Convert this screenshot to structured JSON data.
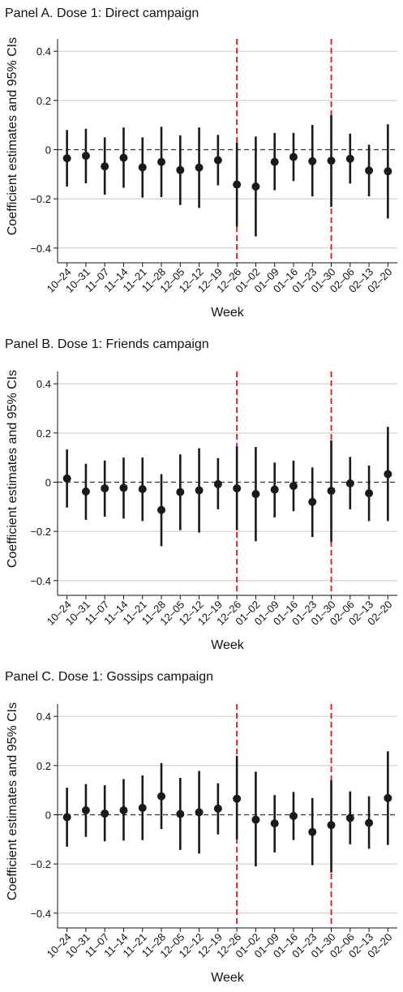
{
  "chart_data": [
    {
      "type": "scatter",
      "title": "Panel A. Dose 1: Direct campaign",
      "xlabel": "Week",
      "ylabel": "Coefficient estimates and 95% CIs",
      "ylim": [
        -0.46,
        0.45
      ],
      "yticks": [
        "0.4",
        "0.2",
        "0",
        "−0.2",
        "−0.4"
      ],
      "ytick_values": [
        0.4,
        0.2,
        0,
        -0.2,
        -0.4
      ],
      "categories": [
        "10–24",
        "10–31",
        "11–07",
        "11–14",
        "11–21",
        "11–28",
        "12–05",
        "12–12",
        "12–19",
        "12–26",
        "01–02",
        "01–09",
        "01–16",
        "01–23",
        "01–30",
        "02–06",
        "02–13",
        "02–20"
      ],
      "estimate": [
        -0.035,
        -0.025,
        -0.068,
        -0.033,
        -0.072,
        -0.05,
        -0.083,
        -0.073,
        -0.043,
        -0.142,
        -0.15,
        -0.05,
        -0.03,
        -0.047,
        -0.045,
        -0.037,
        -0.085,
        -0.088
      ],
      "ci_low": [
        -0.15,
        -0.137,
        -0.183,
        -0.155,
        -0.195,
        -0.193,
        -0.225,
        -0.237,
        -0.145,
        -0.312,
        -0.353,
        -0.165,
        -0.128,
        -0.19,
        -0.233,
        -0.138,
        -0.19,
        -0.28
      ],
      "ci_high": [
        0.08,
        0.085,
        0.05,
        0.09,
        0.05,
        0.093,
        0.058,
        0.09,
        0.06,
        0.028,
        0.053,
        0.068,
        0.068,
        0.1,
        0.14,
        0.065,
        0.02,
        0.103
      ],
      "reference_lines": [
        "12–26",
        "01–30"
      ],
      "grid": true
    },
    {
      "type": "scatter",
      "title": "Panel B. Dose 1: Friends campaign",
      "xlabel": "Week",
      "ylabel": "Coefficient estimates and 95% CIs",
      "ylim": [
        -0.46,
        0.45
      ],
      "yticks": [
        "0.4",
        "0.2",
        "0",
        "−0.2",
        "−0.4"
      ],
      "ytick_values": [
        0.4,
        0.2,
        0,
        -0.2,
        -0.4
      ],
      "categories": [
        "10–24",
        "10–31",
        "11–07",
        "11–14",
        "11–21",
        "11–28",
        "12–05",
        "12–12",
        "12–19",
        "12–26",
        "01–02",
        "01–09",
        "01–16",
        "01–23",
        "01–30",
        "02–06",
        "02–13",
        "02–20"
      ],
      "estimate": [
        0.015,
        -0.038,
        -0.025,
        -0.023,
        -0.028,
        -0.113,
        -0.04,
        -0.033,
        -0.008,
        -0.025,
        -0.048,
        -0.03,
        -0.015,
        -0.08,
        -0.035,
        -0.005,
        -0.045,
        0.033
      ],
      "ci_low": [
        -0.103,
        -0.153,
        -0.14,
        -0.148,
        -0.158,
        -0.26,
        -0.195,
        -0.205,
        -0.11,
        -0.195,
        -0.24,
        -0.143,
        -0.118,
        -0.223,
        -0.243,
        -0.11,
        -0.158,
        -0.158
      ],
      "ci_high": [
        0.133,
        0.075,
        0.088,
        0.1,
        0.1,
        0.033,
        0.113,
        0.138,
        0.098,
        0.145,
        0.143,
        0.08,
        0.088,
        0.06,
        0.17,
        0.103,
        0.068,
        0.225
      ],
      "reference_lines": [
        "12–26",
        "01–30"
      ],
      "grid": true
    },
    {
      "type": "scatter",
      "title": "Panel C. Dose 1: Gossips campaign",
      "xlabel": "Week",
      "ylabel": "Coefficient estimates and 95% CIs",
      "ylim": [
        -0.46,
        0.45
      ],
      "yticks": [
        "0.4",
        "0.2",
        "0",
        "−0.2",
        "−0.4"
      ],
      "ytick_values": [
        0.4,
        0.2,
        0,
        -0.2,
        -0.4
      ],
      "categories": [
        "10–24",
        "10–31",
        "11–07",
        "11–14",
        "11–21",
        "11–28",
        "12–05",
        "12–12",
        "12–19",
        "12–26",
        "01–02",
        "01–09",
        "01–16",
        "01–23",
        "01–30",
        "02–06",
        "02–13",
        "02–20"
      ],
      "estimate": [
        -0.01,
        0.018,
        0.005,
        0.018,
        0.028,
        0.075,
        0.003,
        0.01,
        0.025,
        0.065,
        -0.02,
        -0.035,
        -0.005,
        -0.07,
        -0.042,
        -0.013,
        -0.033,
        0.068
      ],
      "ci_low": [
        -0.13,
        -0.09,
        -0.108,
        -0.105,
        -0.103,
        -0.058,
        -0.143,
        -0.158,
        -0.08,
        -0.1,
        -0.21,
        -0.153,
        -0.103,
        -0.205,
        -0.235,
        -0.12,
        -0.138,
        -0.123
      ],
      "ci_high": [
        0.11,
        0.125,
        0.12,
        0.145,
        0.16,
        0.21,
        0.15,
        0.178,
        0.128,
        0.24,
        0.175,
        0.08,
        0.093,
        0.068,
        0.14,
        0.095,
        0.075,
        0.258
      ],
      "reference_lines": [
        "12–26",
        "01–30"
      ],
      "grid": true
    }
  ],
  "colors": {
    "marker": "#1a1a1a",
    "reference_line": "#d62728",
    "zero_line": "#333333",
    "grid": "#c8c8c8",
    "axis": "#111111"
  }
}
